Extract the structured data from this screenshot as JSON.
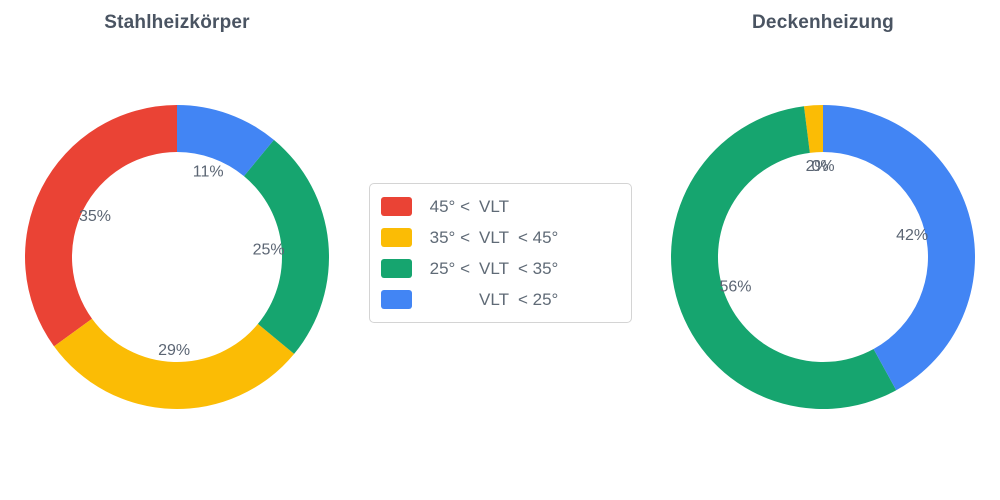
{
  "page": {
    "background": "#ffffff"
  },
  "colors": {
    "red": "#EA4335",
    "yellow": "#FBBC05",
    "green": "#16A56F",
    "blue": "#4285F4",
    "title_text": "#4a5462",
    "percent_label_text": "#5b6573",
    "legend_text": "#5f6a76",
    "legend_border": "#d4d4d4"
  },
  "legend": {
    "items": [
      {
        "label": "45° < VLT",
        "prefix": "45° <",
        "core": "VLT",
        "suffix": "",
        "color": "#EA4335"
      },
      {
        "label": "35° < VLT < 45°",
        "prefix": "35° <",
        "core": "VLT",
        "suffix": "< 45°",
        "color": "#FBBC05"
      },
      {
        "label": "25° < VLT < 35°",
        "prefix": "25° <",
        "core": "VLT",
        "suffix": "< 35°",
        "color": "#16A56F"
      },
      {
        "label": "VLT < 25°",
        "prefix": "",
        "core": "VLT",
        "suffix": "< 25°",
        "color": "#4285F4"
      }
    ]
  },
  "chart_data": [
    {
      "type": "pie",
      "title": "Stahlheizkörper",
      "hole": 0.69,
      "direction": "counterclockwise",
      "start_angle": "top",
      "legend_position": "middle-center-between-charts",
      "labels": [
        "45° < VLT",
        "35° < VLT < 45°",
        "25° < VLT < 35°",
        "VLT < 25°"
      ],
      "values": [
        35,
        29,
        25,
        11
      ],
      "unit": "%",
      "display_labels": [
        "35%",
        "29%",
        "25%",
        "11%"
      ],
      "colors": [
        "#EA4335",
        "#FBBC05",
        "#16A56F",
        "#4285F4"
      ]
    },
    {
      "type": "pie",
      "title": "Deckenheizung",
      "hole": 0.69,
      "direction": "counterclockwise",
      "start_angle": "top",
      "labels": [
        "45° < VLT",
        "35° < VLT < 45°",
        "25° < VLT < 35°",
        "VLT < 25°"
      ],
      "values": [
        0,
        2,
        56,
        42
      ],
      "unit": "%",
      "display_labels": [
        "0%",
        "2%",
        "56%",
        "42%"
      ],
      "colors": [
        "#EA4335",
        "#FBBC05",
        "#16A56F",
        "#4285F4"
      ]
    }
  ]
}
